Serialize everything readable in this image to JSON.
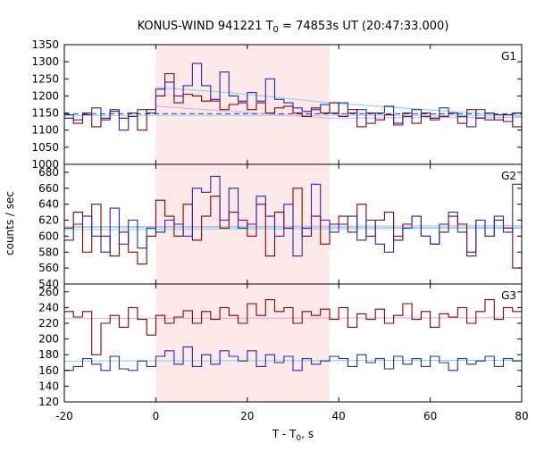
{
  "chart_data": {
    "type": "line",
    "title": "KONUS-WIND 941221 T",
    "title_sub": "0",
    "title_rest": " = 74853s UT (20:47:33.000)",
    "xlabel": "T - T",
    "xlabel_sub": "0",
    "xlabel_rest": ", s",
    "ylabel": "counts / sec",
    "xlim": [
      -20,
      80
    ],
    "x_ticks": [
      "-20",
      "0",
      "20",
      "40",
      "60",
      "80"
    ],
    "highlight_interval": [
      0,
      38
    ],
    "colors": {
      "highlight": "#fde8ea",
      "red": "#8b0000",
      "blue": "#2727b5",
      "cyan": "#7fd4e6",
      "pink": "#e4a4e4",
      "dash": "#3030c0",
      "frame": "#000000"
    },
    "panels": [
      {
        "label": "G1",
        "ylim": [
          1000,
          1350
        ],
        "y_ticks": [
          "1350",
          "1300",
          "1250",
          "1200",
          "1150",
          "1100",
          "1050",
          "1000"
        ],
        "red": [
          -20,
          1135,
          -18,
          1120,
          -16,
          1145,
          -14,
          1110,
          -12,
          1135,
          -10,
          1155,
          -8,
          1135,
          -6,
          1150,
          -4,
          1100,
          -2,
          1160,
          0,
          1200,
          2,
          1265,
          4,
          1180,
          6,
          1205,
          8,
          1200,
          10,
          1185,
          12,
          1190,
          14,
          1160,
          16,
          1175,
          18,
          1180,
          20,
          1160,
          22,
          1180,
          24,
          1150,
          26,
          1165,
          28,
          1170,
          30,
          1150,
          32,
          1140,
          34,
          1165,
          36,
          1150,
          38,
          1180,
          40,
          1140,
          42,
          1160,
          44,
          1110,
          46,
          1150,
          48,
          1130,
          50,
          1145,
          52,
          1120,
          54,
          1150,
          56,
          1120,
          58,
          1150,
          60,
          1135,
          62,
          1140,
          64,
          1150,
          66,
          1120,
          68,
          1160,
          70,
          1135,
          72,
          1150,
          74,
          1130,
          76,
          1145,
          78,
          1110,
          80
        ],
        "blue": [
          -20,
          1145,
          -18,
          1130,
          -16,
          1150,
          -14,
          1165,
          -12,
          1130,
          -10,
          1160,
          -8,
          1100,
          -6,
          1140,
          -4,
          1160,
          -2,
          1150,
          0,
          1220,
          2,
          1240,
          4,
          1200,
          6,
          1230,
          8,
          1295,
          10,
          1230,
          12,
          1185,
          14,
          1270,
          16,
          1200,
          18,
          1185,
          20,
          1210,
          22,
          1185,
          24,
          1250,
          26,
          1190,
          28,
          1180,
          30,
          1165,
          32,
          1155,
          34,
          1160,
          36,
          1175,
          38,
          1150,
          40,
          1180,
          42,
          1150,
          44,
          1160,
          46,
          1120,
          48,
          1150,
          50,
          1170,
          52,
          1115,
          54,
          1140,
          56,
          1160,
          58,
          1140,
          60,
          1130,
          62,
          1165,
          64,
          1150,
          66,
          1140,
          68,
          1110,
          70,
          1160,
          72,
          1130,
          74,
          1145,
          76,
          1125,
          78,
          1150,
          80
        ],
        "fit_red": [
          0,
          1170,
          38,
          1135,
          80,
          1138
        ],
        "fit_blue": [
          0,
          1225,
          16,
          1210,
          38,
          1180,
          80,
          1140
        ],
        "baseline_dashed": 1148,
        "baseline_solid": 1143
      },
      {
        "label": "G2",
        "ylim": [
          540,
          690
        ],
        "y_ticks": [
          "680",
          "660",
          "640",
          "620",
          "600",
          "580",
          "560",
          "540"
        ],
        "red": [
          -20,
          610,
          -18,
          630,
          -16,
          580,
          -14,
          640,
          -12,
          600,
          -10,
          575,
          -8,
          605,
          -6,
          580,
          -4,
          565,
          -2,
          600,
          0,
          645,
          2,
          625,
          4,
          600,
          6,
          640,
          8,
          595,
          10,
          625,
          12,
          650,
          14,
          610,
          16,
          630,
          18,
          620,
          20,
          600,
          22,
          640,
          24,
          575,
          26,
          630,
          28,
          610,
          30,
          660,
          32,
          600,
          34,
          625,
          36,
          590,
          38,
          615,
          40,
          625,
          42,
          605,
          44,
          640,
          46,
          600,
          48,
          620,
          50,
          630,
          52,
          595,
          54,
          615,
          56,
          625,
          58,
          600,
          60,
          590,
          62,
          605,
          64,
          625,
          66,
          615,
          68,
          580,
          70,
          620,
          72,
          600,
          74,
          620,
          76,
          610,
          78,
          560,
          80
        ],
        "blue": [
          -20,
          595,
          -18,
          615,
          -16,
          625,
          -14,
          600,
          -12,
          580,
          -10,
          635,
          -8,
          590,
          -6,
          620,
          -4,
          585,
          -2,
          610,
          0,
          605,
          2,
          620,
          4,
          615,
          6,
          600,
          8,
          660,
          10,
          655,
          12,
          675,
          14,
          620,
          16,
          660,
          18,
          610,
          20,
          615,
          22,
          650,
          24,
          625,
          26,
          600,
          28,
          640,
          30,
          575,
          32,
          610,
          34,
          665,
          36,
          620,
          38,
          605,
          40,
          615,
          42,
          625,
          44,
          595,
          46,
          620,
          48,
          590,
          50,
          580,
          52,
          600,
          54,
          610,
          56,
          625,
          58,
          600,
          60,
          590,
          62,
          615,
          64,
          630,
          66,
          605,
          68,
          575,
          70,
          620,
          72,
          600,
          74,
          625,
          76,
          605,
          78,
          665,
          80
        ],
        "fit_red": [
          -20,
          612,
          80,
          613
        ],
        "fit_blue": [
          -20,
          608,
          80,
          610
        ],
        "baseline_dashed": null,
        "baseline_solid": 611
      },
      {
        "label": "G3",
        "ylim": [
          120,
          270
        ],
        "y_ticks": [
          "260",
          "240",
          "220",
          "200",
          "180",
          "160",
          "140",
          "120"
        ],
        "red": [
          -20,
          235,
          -18,
          228,
          -16,
          235,
          -14,
          180,
          -12,
          220,
          -10,
          230,
          -8,
          215,
          -6,
          240,
          -4,
          225,
          -2,
          205,
          0,
          230,
          2,
          220,
          4,
          228,
          6,
          236,
          8,
          220,
          10,
          235,
          12,
          225,
          14,
          240,
          16,
          230,
          18,
          220,
          20,
          245,
          22,
          230,
          24,
          250,
          26,
          235,
          28,
          240,
          30,
          220,
          32,
          235,
          34,
          230,
          36,
          238,
          38,
          225,
          40,
          240,
          42,
          215,
          44,
          232,
          46,
          225,
          48,
          238,
          50,
          220,
          52,
          230,
          54,
          245,
          56,
          225,
          58,
          235,
          60,
          215,
          62,
          232,
          64,
          228,
          66,
          240,
          68,
          220,
          70,
          235,
          72,
          250,
          74,
          225,
          76,
          240,
          78,
          235,
          80
        ],
        "blue": [
          -20,
          160,
          -18,
          165,
          -16,
          175,
          -14,
          168,
          -12,
          160,
          -10,
          178,
          -8,
          162,
          -6,
          160,
          -4,
          172,
          -2,
          165,
          0,
          178,
          2,
          185,
          4,
          168,
          6,
          190,
          8,
          165,
          10,
          180,
          12,
          168,
          14,
          185,
          16,
          178,
          18,
          172,
          20,
          185,
          22,
          165,
          24,
          180,
          26,
          170,
          28,
          178,
          30,
          160,
          32,
          175,
          34,
          168,
          36,
          172,
          38,
          178,
          40,
          175,
          42,
          165,
          44,
          180,
          46,
          170,
          48,
          175,
          50,
          162,
          52,
          178,
          54,
          168,
          56,
          175,
          58,
          165,
          60,
          178,
          62,
          170,
          64,
          160,
          66,
          175,
          68,
          168,
          70,
          172,
          72,
          178,
          74,
          165,
          76,
          175,
          78,
          172,
          80
        ],
        "fit_red": [
          -20,
          226,
          80,
          227
        ],
        "fit_blue": [
          -20,
          172,
          80,
          173
        ],
        "baseline_dashed": null,
        "baseline_solid": null
      }
    ]
  }
}
